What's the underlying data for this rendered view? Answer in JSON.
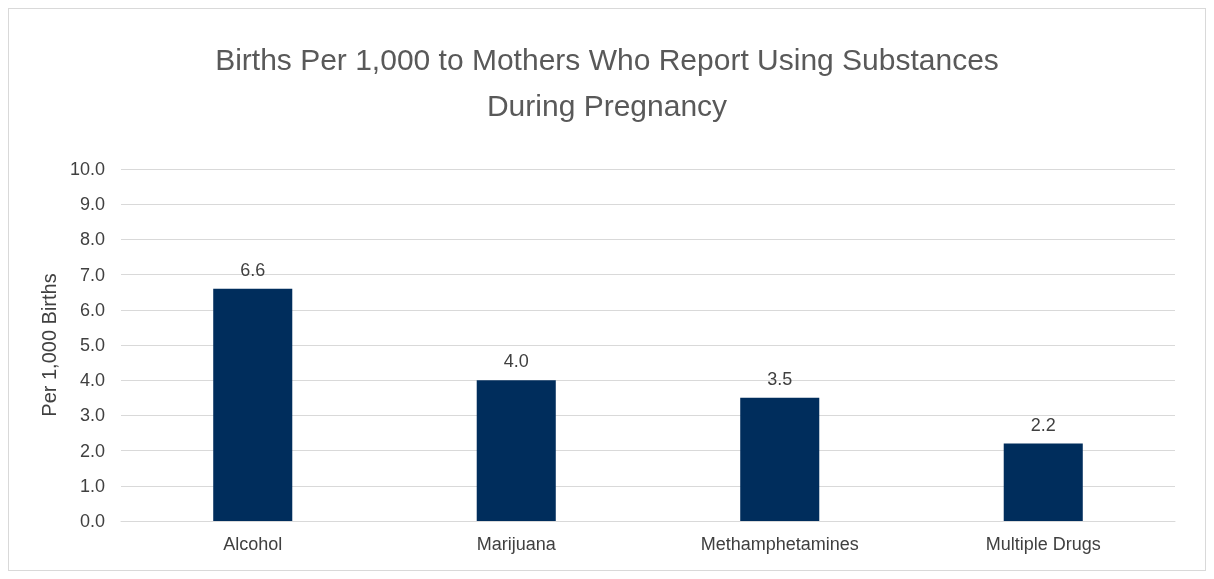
{
  "chart_data": {
    "type": "bar",
    "title": "Births Per 1,000 to Mothers Who Report Using Substances\nDuring Pregnancy",
    "ylabel": "Per 1,000 Births",
    "categories": [
      "Alcohol",
      "Marijuana",
      "Methamphetamines",
      "Multiple Drugs"
    ],
    "values": [
      6.6,
      4.0,
      3.5,
      2.2
    ],
    "color": "#002d5c",
    "value_labels": [
      "6.6",
      "4.0",
      "3.5",
      "2.2"
    ],
    "ylim": [
      0,
      10
    ],
    "yticks": [
      {
        "value": 0,
        "label": "0.0"
      },
      {
        "value": 1,
        "label": "1.0"
      },
      {
        "value": 2,
        "label": "2.0"
      },
      {
        "value": 3,
        "label": "3.0"
      },
      {
        "value": 4,
        "label": "4.0"
      },
      {
        "value": 5,
        "label": "5.0"
      },
      {
        "value": 6,
        "label": "6.0"
      },
      {
        "value": 7,
        "label": "7.0"
      },
      {
        "value": 8,
        "label": "8.0"
      },
      {
        "value": 9,
        "label": "9.0"
      },
      {
        "value": 10,
        "label": "10.0"
      }
    ],
    "grid": "y"
  }
}
